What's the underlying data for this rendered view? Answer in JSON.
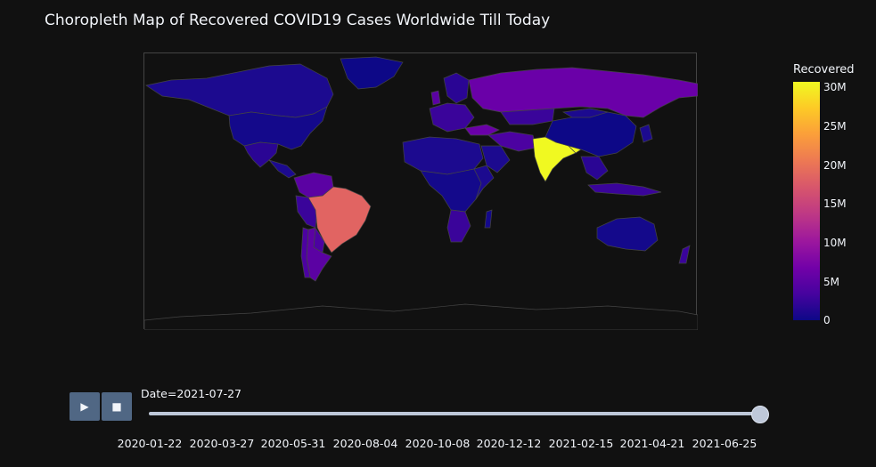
{
  "title": "Choropleth Map of Recovered COVID19 Cases Worldwide Till Today",
  "colorbar": {
    "title": "Recovered",
    "ticks": [
      "30M",
      "25M",
      "20M",
      "15M",
      "10M",
      "5M",
      "0"
    ],
    "scale": "Plasma"
  },
  "controls": {
    "play_icon": "play-icon",
    "stop_icon": "stop-icon"
  },
  "slider": {
    "current": "Date=2021-07-27",
    "value_fraction": 1.0,
    "ticks": [
      "2020-01-22",
      "2020-03-27",
      "2020-05-31",
      "2020-08-04",
      "2020-10-08",
      "2020-12-12",
      "2021-02-15",
      "2021-04-21",
      "2021-06-25"
    ]
  },
  "map_data": {
    "metric": "Recovered",
    "date": "2021-07-27",
    "countries": [
      {
        "name": "India",
        "recovered": 30500000,
        "color": "#f0f921"
      },
      {
        "name": "Brazil",
        "recovered": 17500000,
        "color": "#e16462"
      },
      {
        "name": "Russia",
        "recovered": 5500000,
        "color": "#6a00a8"
      },
      {
        "name": "Argentina",
        "recovered": 4500000,
        "color": "#5b02a3"
      },
      {
        "name": "Colombia",
        "recovered": 4500000,
        "color": "#5b02a3"
      },
      {
        "name": "Turkey",
        "recovered": 5400000,
        "color": "#6a00a8"
      },
      {
        "name": "Iran",
        "recovered": 3300000,
        "color": "#4c02a1"
      },
      {
        "name": "South Africa",
        "recovered": 2000000,
        "color": "#3a049a"
      },
      {
        "name": "United States",
        "recovered": 0,
        "color": "#0d0887"
      },
      {
        "name": "China",
        "recovered": 90000,
        "color": "#0d0887"
      }
    ]
  }
}
